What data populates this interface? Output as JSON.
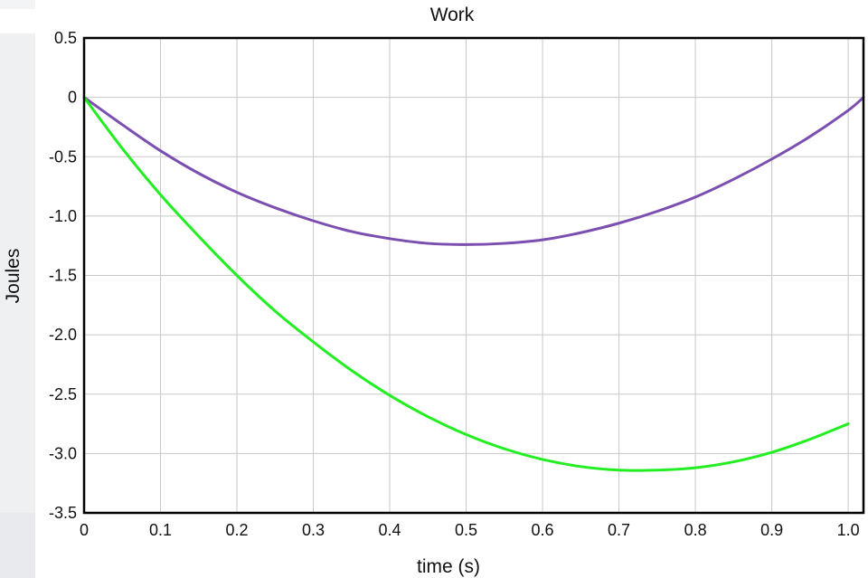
{
  "chart_data": {
    "type": "line",
    "title": "Work",
    "xlabel": "time (s)",
    "ylabel": "Joules",
    "xlim": [
      0,
      1.02
    ],
    "ylim": [
      -3.5,
      0.5
    ],
    "x_ticks": [
      "0",
      "0.1",
      "0.2",
      "0.3",
      "0.4",
      "0.5",
      "0.6",
      "0.7",
      "0.8",
      "0.9",
      "1.0"
    ],
    "y_ticks": [
      "0.5",
      "0",
      "-0.5",
      "-1.0",
      "-1.5",
      "-2.0",
      "-2.5",
      "-3.0",
      "-3.5"
    ],
    "grid": true,
    "series": [
      {
        "color": "#7b4fb0",
        "x": [
          0,
          0.05,
          0.1,
          0.15,
          0.2,
          0.25,
          0.3,
          0.35,
          0.4,
          0.45,
          0.5,
          0.55,
          0.6,
          0.65,
          0.7,
          0.75,
          0.8,
          0.85,
          0.9,
          0.95,
          1.0,
          1.02
        ],
        "y": [
          0,
          -0.23,
          -0.45,
          -0.64,
          -0.8,
          -0.93,
          -1.04,
          -1.13,
          -1.19,
          -1.23,
          -1.24,
          -1.23,
          -1.2,
          -1.14,
          -1.06,
          -0.96,
          -0.84,
          -0.69,
          -0.52,
          -0.33,
          -0.11,
          0
        ]
      },
      {
        "color": "#22ee22",
        "x": [
          0,
          0.05,
          0.1,
          0.15,
          0.2,
          0.25,
          0.3,
          0.35,
          0.4,
          0.45,
          0.5,
          0.55,
          0.6,
          0.65,
          0.7,
          0.75,
          0.8,
          0.85,
          0.9,
          0.95,
          1.0
        ],
        "y": [
          0,
          -0.43,
          -0.82,
          -1.17,
          -1.5,
          -1.8,
          -2.06,
          -2.3,
          -2.51,
          -2.69,
          -2.84,
          -2.96,
          -3.05,
          -3.11,
          -3.14,
          -3.14,
          -3.12,
          -3.07,
          -2.99,
          -2.88,
          -2.75
        ]
      }
    ]
  }
}
